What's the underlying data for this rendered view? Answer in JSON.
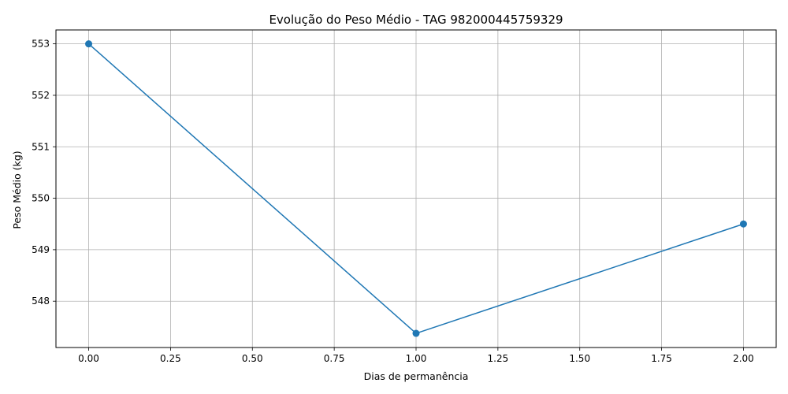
{
  "chart_data": {
    "type": "line",
    "title": "Evolução do Peso Médio - TAG 982000445759329",
    "xlabel": "Dias de permanência",
    "ylabel": "Peso Médio (kg)",
    "x": [
      0,
      1,
      2
    ],
    "y": [
      553.0,
      547.375,
      549.5
    ],
    "xlim": [
      -0.1,
      2.1
    ],
    "ylim": [
      547.1,
      553.27
    ],
    "xticks": [
      0,
      0.25,
      0.5,
      0.75,
      1,
      1.25,
      1.5,
      1.75,
      2
    ],
    "xtick_labels": [
      "0.00",
      "0.25",
      "0.50",
      "0.75",
      "1.00",
      "1.25",
      "1.50",
      "1.75",
      "2.00"
    ],
    "yticks": [
      548,
      549,
      550,
      551,
      552,
      553
    ],
    "ytick_labels": [
      "548",
      "549",
      "550",
      "551",
      "552",
      "553"
    ],
    "grid": true,
    "marker": "circle",
    "line_color": "#1f77b4"
  }
}
